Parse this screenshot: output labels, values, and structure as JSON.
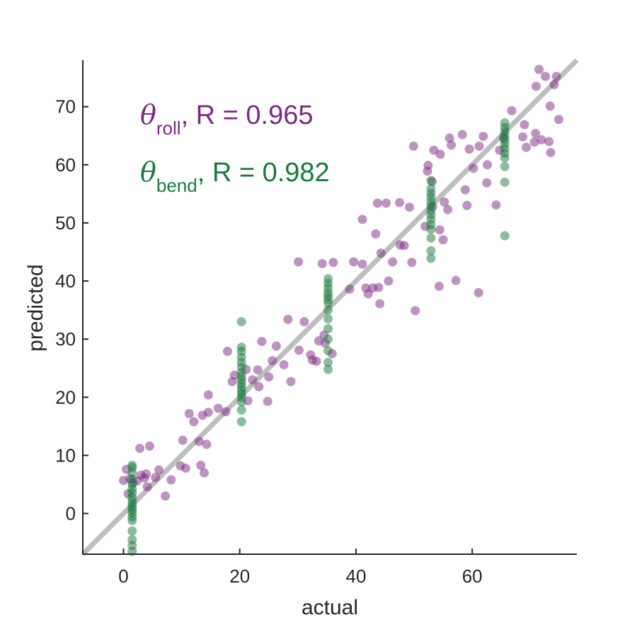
{
  "chart_data": {
    "type": "scatter",
    "title": "",
    "xlabel": "actual",
    "ylabel": "predicted",
    "xlim": [
      -7,
      78
    ],
    "ylim": [
      -7,
      78
    ],
    "xticks": [
      0,
      20,
      40,
      60
    ],
    "yticks": [
      0,
      10,
      20,
      30,
      40,
      50,
      60,
      70
    ],
    "grid": false,
    "colors": {
      "roll": "#7b2a82",
      "bend": "#1a7a3c",
      "identity_line": "#bdbdbd",
      "axis": "#262626"
    },
    "identity_line": {
      "from": [
        -7,
        -7
      ],
      "to": [
        78,
        78
      ]
    },
    "annotations": [
      {
        "symbol": "θ",
        "subscript": "roll",
        "text": ", R = 0.965",
        "color": "#7b2a82"
      },
      {
        "symbol": "θ",
        "subscript": "bend",
        "text": ", R = 0.982",
        "color": "#1a7a3c"
      }
    ],
    "series": [
      {
        "key": "roll",
        "color": "#7b2a82",
        "points": [
          [
            0,
            5.7
          ],
          [
            0.5,
            7.6
          ],
          [
            0.8,
            3.4
          ],
          [
            1.1,
            6.0
          ],
          [
            1.6,
            5.3
          ],
          [
            2.3,
            5.6
          ],
          [
            2.8,
            11.2
          ],
          [
            3.0,
            6.6
          ],
          [
            3.6,
            6.1
          ],
          [
            3.9,
            6.8
          ],
          [
            4.1,
            4.6
          ],
          [
            4.5,
            11.6
          ],
          [
            5.5,
            6.2
          ],
          [
            6.1,
            7.5
          ],
          [
            7.2,
            3.0
          ],
          [
            8.2,
            5.8
          ],
          [
            9.8,
            8.2
          ],
          [
            10.2,
            12.6
          ],
          [
            10.7,
            7.8
          ],
          [
            11.3,
            17.2
          ],
          [
            12.1,
            15.8
          ],
          [
            13.0,
            12.4
          ],
          [
            13.3,
            8.3
          ],
          [
            13.6,
            16.9
          ],
          [
            13.9,
            7.0
          ],
          [
            14.3,
            11.9
          ],
          [
            14.6,
            17.4
          ],
          [
            14.6,
            20.4
          ],
          [
            16.3,
            18.1
          ],
          [
            17.6,
            17.5
          ],
          [
            17.9,
            27.9
          ],
          [
            18.7,
            22.7
          ],
          [
            19.1,
            23.8
          ],
          [
            21.1,
            24.8
          ],
          [
            21.4,
            19.4
          ],
          [
            22.2,
            23.0
          ],
          [
            23.1,
            24.7
          ],
          [
            23.3,
            21.8
          ],
          [
            23.8,
            29.6
          ],
          [
            24.8,
            19.3
          ],
          [
            25.0,
            23.5
          ],
          [
            25.6,
            26.3
          ],
          [
            26.3,
            28.8
          ],
          [
            27.6,
            25.6
          ],
          [
            28.3,
            33.4
          ],
          [
            28.8,
            22.7
          ],
          [
            30.1,
            43.3
          ],
          [
            30.2,
            28.1
          ],
          [
            31.1,
            33.0
          ],
          [
            32.2,
            27.3
          ],
          [
            32.5,
            26.4
          ],
          [
            33.2,
            26.2
          ],
          [
            33.6,
            29.7
          ],
          [
            34.2,
            43.0
          ],
          [
            34.5,
            30.7
          ],
          [
            34.7,
            29.3
          ],
          [
            35.9,
            27.5
          ],
          [
            36.1,
            43.2
          ],
          [
            38.9,
            38.6
          ],
          [
            39.6,
            43.3
          ],
          [
            41.1,
            42.9
          ],
          [
            41.1,
            50.6
          ],
          [
            41.7,
            38.8
          ],
          [
            42.1,
            37.8
          ],
          [
            42.9,
            38.8
          ],
          [
            43.4,
            48.1
          ],
          [
            43.7,
            53.4
          ],
          [
            43.9,
            38.9
          ],
          [
            44.1,
            36.1
          ],
          [
            44.3,
            44.8
          ],
          [
            45.2,
            53.4
          ],
          [
            45.6,
            40.0
          ],
          [
            46.3,
            43.3
          ],
          [
            47.5,
            53.5
          ],
          [
            47.6,
            46.2
          ],
          [
            48.3,
            46.1
          ],
          [
            49.2,
            52.7
          ],
          [
            49.6,
            43.2
          ],
          [
            49.9,
            63.2
          ],
          [
            50.2,
            34.9
          ],
          [
            51.9,
            49.4
          ],
          [
            52.3,
            58.9
          ],
          [
            52.4,
            59.9
          ],
          [
            53.1,
            57.1
          ],
          [
            53.2,
            52.8
          ],
          [
            53.4,
            62.5
          ],
          [
            54.3,
            39.1
          ],
          [
            54.4,
            48.8
          ],
          [
            54.5,
            61.8
          ],
          [
            55.0,
            47.1
          ],
          [
            55.2,
            53.6
          ],
          [
            55.8,
            52.3
          ],
          [
            56.1,
            64.6
          ],
          [
            56.4,
            63.4
          ],
          [
            57.2,
            40.1
          ],
          [
            58.3,
            65.2
          ],
          [
            58.8,
            55.7
          ],
          [
            59.1,
            53.0
          ],
          [
            59.5,
            62.7
          ],
          [
            60.2,
            59.4
          ],
          [
            61.1,
            38.0
          ],
          [
            61.2,
            63.2
          ],
          [
            61.9,
            64.9
          ],
          [
            62.5,
            56.9
          ],
          [
            62.6,
            60.0
          ],
          [
            64.1,
            53.1
          ],
          [
            64.7,
            62.5
          ],
          [
            65.4,
            64.6
          ],
          [
            66.8,
            69.3
          ],
          [
            68.7,
            64.8
          ],
          [
            69.0,
            66.9
          ],
          [
            69.3,
            63.0
          ],
          [
            70.7,
            63.9
          ],
          [
            70.9,
            65.4
          ],
          [
            71.0,
            73.5
          ],
          [
            71.5,
            76.4
          ],
          [
            71.9,
            64.3
          ],
          [
            72.6,
            75.2
          ],
          [
            73.2,
            64.0
          ],
          [
            73.4,
            70.1
          ],
          [
            73.5,
            62.1
          ],
          [
            74.1,
            73.8
          ],
          [
            74.5,
            75.2
          ],
          [
            74.9,
            67.8
          ]
        ]
      },
      {
        "key": "bend",
        "color": "#1a7a3c",
        "points": [
          [
            1.5,
            8.3
          ],
          [
            1.5,
            7.9
          ],
          [
            1.5,
            7.0
          ],
          [
            1.5,
            5.9
          ],
          [
            1.5,
            5.0
          ],
          [
            1.5,
            4.2
          ],
          [
            1.5,
            3.5
          ],
          [
            1.5,
            2.8
          ],
          [
            1.5,
            2.2
          ],
          [
            1.5,
            1.6
          ],
          [
            1.5,
            1.1
          ],
          [
            1.5,
            0.6
          ],
          [
            1.5,
            0.1
          ],
          [
            1.5,
            -0.6
          ],
          [
            1.5,
            -1.2
          ],
          [
            1.5,
            -3.0
          ],
          [
            1.5,
            -4.5
          ],
          [
            1.5,
            -5.5
          ],
          [
            1.5,
            -6.5
          ],
          [
            20.3,
            33.0
          ],
          [
            20.3,
            28.6
          ],
          [
            20.3,
            27.9
          ],
          [
            20.3,
            26.9
          ],
          [
            20.3,
            26.0
          ],
          [
            20.3,
            25.2
          ],
          [
            20.3,
            24.3
          ],
          [
            20.3,
            23.6
          ],
          [
            20.3,
            23.0
          ],
          [
            20.3,
            22.4
          ],
          [
            20.3,
            21.8
          ],
          [
            20.3,
            21.2
          ],
          [
            20.3,
            20.6
          ],
          [
            20.3,
            20.0
          ],
          [
            20.3,
            19.2
          ],
          [
            20.3,
            17.8
          ],
          [
            20.3,
            15.8
          ],
          [
            35.2,
            40.4
          ],
          [
            35.2,
            39.6
          ],
          [
            35.2,
            38.8
          ],
          [
            35.2,
            38.0
          ],
          [
            35.2,
            37.4
          ],
          [
            35.2,
            36.8
          ],
          [
            35.2,
            36.2
          ],
          [
            35.2,
            35.0
          ],
          [
            35.2,
            33.5
          ],
          [
            35.2,
            31.8
          ],
          [
            35.2,
            30.0
          ],
          [
            35.2,
            28.0
          ],
          [
            35.2,
            26.0
          ],
          [
            35.2,
            24.8
          ],
          [
            52.9,
            57.3
          ],
          [
            52.9,
            55.9
          ],
          [
            52.9,
            55.1
          ],
          [
            52.9,
            54.4
          ],
          [
            52.9,
            53.6
          ],
          [
            52.9,
            52.9
          ],
          [
            52.9,
            52.1
          ],
          [
            52.9,
            51.4
          ],
          [
            52.9,
            50.6
          ],
          [
            52.9,
            49.7
          ],
          [
            52.9,
            48.9
          ],
          [
            52.9,
            47.4
          ],
          [
            52.9,
            45.2
          ],
          [
            52.9,
            43.9
          ],
          [
            65.6,
            67.2
          ],
          [
            65.6,
            66.4
          ],
          [
            65.6,
            65.7
          ],
          [
            65.6,
            65.0
          ],
          [
            65.6,
            64.3
          ],
          [
            65.6,
            63.6
          ],
          [
            65.6,
            62.8
          ],
          [
            65.6,
            62.0
          ],
          [
            65.6,
            61.2
          ],
          [
            65.6,
            59.7
          ],
          [
            65.6,
            57.0
          ],
          [
            65.6,
            47.8
          ]
        ]
      }
    ]
  }
}
